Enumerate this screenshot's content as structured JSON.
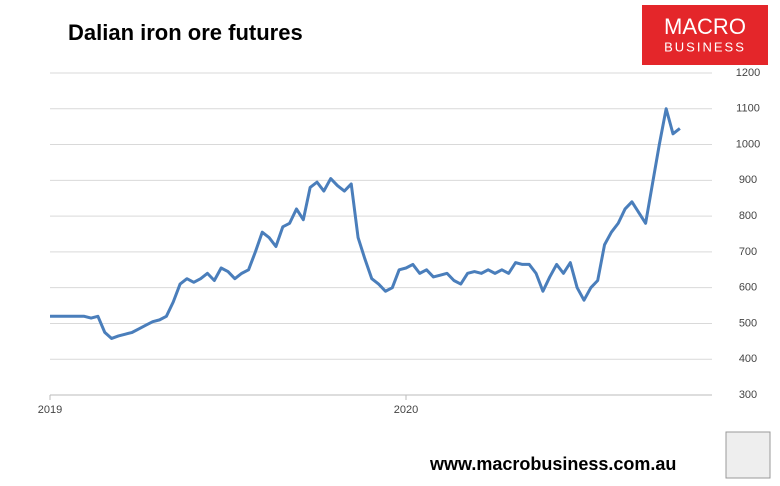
{
  "chart_data": {
    "type": "line",
    "title": "Dalian iron ore futures",
    "categories": [
      "2019",
      null,
      null,
      null,
      null,
      null,
      null,
      null,
      null,
      null,
      null,
      null,
      null,
      null,
      null,
      null,
      null,
      null,
      null,
      null,
      null,
      null,
      null,
      null,
      null,
      null,
      null,
      null,
      null,
      null,
      null,
      null,
      null,
      null,
      null,
      null,
      null,
      null,
      null,
      null,
      null,
      null,
      null,
      null,
      null,
      null,
      null,
      null,
      null,
      null,
      null,
      null,
      "2020",
      null,
      null,
      null,
      null,
      null,
      null,
      null,
      null,
      null,
      null,
      null,
      null,
      null,
      null,
      null,
      null,
      null,
      null,
      null,
      null,
      null,
      null,
      null,
      null,
      null,
      null,
      null,
      null,
      null,
      null,
      null,
      null,
      null,
      null,
      null,
      null,
      null,
      null,
      null,
      null
    ],
    "series": [
      {
        "color": "#4a7ebb",
        "values": [
          520,
          520,
          520,
          520,
          520,
          520,
          515,
          520,
          475,
          458,
          465,
          470,
          475,
          485,
          495,
          505,
          510,
          520,
          560,
          610,
          625,
          615,
          625,
          640,
          620,
          655,
          645,
          625,
          640,
          650,
          700,
          755,
          740,
          715,
          770,
          780,
          820,
          790,
          880,
          895,
          870,
          905,
          885,
          870,
          890,
          740,
          680,
          625,
          610,
          590,
          600,
          650,
          655,
          665,
          640,
          650,
          630,
          635,
          640,
          620,
          610,
          640,
          645,
          640,
          650,
          640,
          650,
          640,
          670,
          665,
          665,
          640,
          590,
          630,
          665,
          640,
          670,
          600,
          565,
          600,
          620,
          720,
          755,
          780,
          820,
          840,
          810,
          780,
          890,
          1000,
          1100,
          1030,
          1045
        ]
      }
    ],
    "ylim": [
      300,
      1200
    ],
    "yticks": [
      300,
      400,
      500,
      600,
      700,
      800,
      900,
      1000,
      1100,
      1200
    ],
    "grid": true
  },
  "branding": {
    "logo_line1": "MACRO",
    "logo_line2": "BUSINESS",
    "website": "www.macrobusiness.com.au"
  }
}
